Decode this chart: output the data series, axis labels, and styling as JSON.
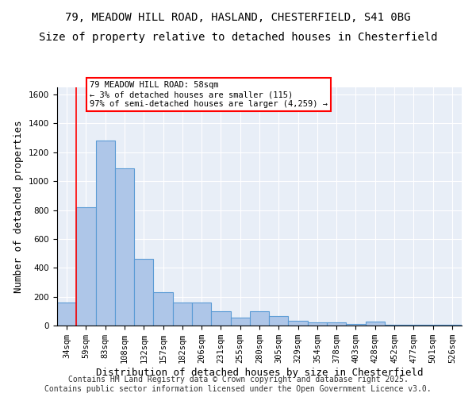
{
  "title1": "79, MEADOW HILL ROAD, HASLAND, CHESTERFIELD, S41 0BG",
  "title2": "Size of property relative to detached houses in Chesterfield",
  "xlabel": "Distribution of detached houses by size in Chesterfield",
  "ylabel": "Number of detached properties",
  "categories": [
    "34sqm",
    "59sqm",
    "83sqm",
    "108sqm",
    "132sqm",
    "157sqm",
    "182sqm",
    "206sqm",
    "231sqm",
    "255sqm",
    "280sqm",
    "305sqm",
    "329sqm",
    "354sqm",
    "378sqm",
    "403sqm",
    "428sqm",
    "452sqm",
    "477sqm",
    "501sqm",
    "526sqm"
  ],
  "values": [
    160,
    820,
    1280,
    1090,
    460,
    230,
    160,
    160,
    100,
    55,
    100,
    65,
    35,
    20,
    20,
    10,
    30,
    5,
    5,
    5,
    5
  ],
  "bar_color": "#aec6e8",
  "bar_edge_color": "#5b9bd5",
  "highlight_bar_index": 1,
  "highlight_color": "#aec6e8",
  "vline_x": 1,
  "annotation_text": "79 MEADOW HILL ROAD: 58sqm\n← 3% of detached houses are smaller (115)\n97% of semi-detached houses are larger (4,259) →",
  "annotation_box_color": "white",
  "annotation_box_edge_color": "red",
  "ylim": [
    0,
    1650
  ],
  "yticks": [
    0,
    200,
    400,
    600,
    800,
    1000,
    1200,
    1400,
    1600
  ],
  "background_color": "#e8eef7",
  "footer": "Contains HM Land Registry data © Crown copyright and database right 2025.\nContains public sector information licensed under the Open Government Licence v3.0.",
  "title_fontsize": 10,
  "axis_label_fontsize": 9,
  "tick_fontsize": 7.5,
  "footer_fontsize": 7
}
